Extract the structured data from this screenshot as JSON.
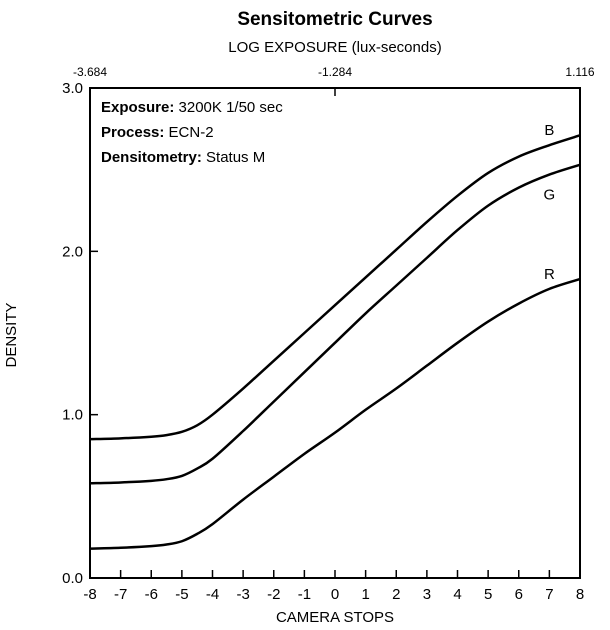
{
  "chart_data": {
    "type": "line",
    "title": "Sensitometric Curves",
    "top_axis_label": "LOG EXPOSURE (lux-seconds)",
    "top_ticks": [
      "-3.684",
      "-1.284",
      "1.116"
    ],
    "xlabel": "CAMERA STOPS",
    "ylabel": "DENSITY",
    "xlim": [
      -8,
      8
    ],
    "ylim": [
      0,
      3
    ],
    "x_ticks": [
      -8,
      -7,
      -6,
      -5,
      -4,
      -3,
      -2,
      -1,
      0,
      1,
      2,
      3,
      4,
      5,
      6,
      7,
      8
    ],
    "y_ticks": [
      "0.0",
      "1.0",
      "2.0",
      "3.0"
    ],
    "info": [
      {
        "label": "Exposure:",
        "value": " 3200K 1/50 sec"
      },
      {
        "label": "Process:",
        "value": " ECN-2"
      },
      {
        "label": "Densitometry:",
        "value": " Status M"
      }
    ],
    "series": [
      {
        "name": "B",
        "x": [
          -8,
          -7,
          -6,
          -5.5,
          -5,
          -4.5,
          -4,
          -3,
          -2,
          -1,
          0,
          1,
          2,
          3,
          4,
          5,
          6,
          7,
          8
        ],
        "y": [
          0.85,
          0.855,
          0.865,
          0.875,
          0.895,
          0.935,
          1.0,
          1.16,
          1.33,
          1.5,
          1.67,
          1.84,
          2.01,
          2.18,
          2.34,
          2.48,
          2.58,
          2.65,
          2.71
        ]
      },
      {
        "name": "G",
        "x": [
          -8,
          -7,
          -6,
          -5.5,
          -5,
          -4.5,
          -4,
          -3,
          -2,
          -1,
          0,
          1,
          2,
          3,
          4,
          5,
          6,
          7,
          8
        ],
        "y": [
          0.58,
          0.585,
          0.595,
          0.605,
          0.625,
          0.67,
          0.73,
          0.9,
          1.08,
          1.26,
          1.44,
          1.62,
          1.79,
          1.96,
          2.13,
          2.28,
          2.39,
          2.47,
          2.53
        ]
      },
      {
        "name": "R",
        "x": [
          -8,
          -7,
          -6,
          -5.5,
          -5,
          -4.5,
          -4,
          -3,
          -2,
          -1,
          0,
          1,
          2,
          3,
          4,
          5,
          6,
          7,
          8
        ],
        "y": [
          0.18,
          0.185,
          0.195,
          0.205,
          0.225,
          0.27,
          0.33,
          0.48,
          0.62,
          0.76,
          0.89,
          1.03,
          1.16,
          1.3,
          1.44,
          1.57,
          1.68,
          1.77,
          1.83
        ]
      }
    ]
  }
}
